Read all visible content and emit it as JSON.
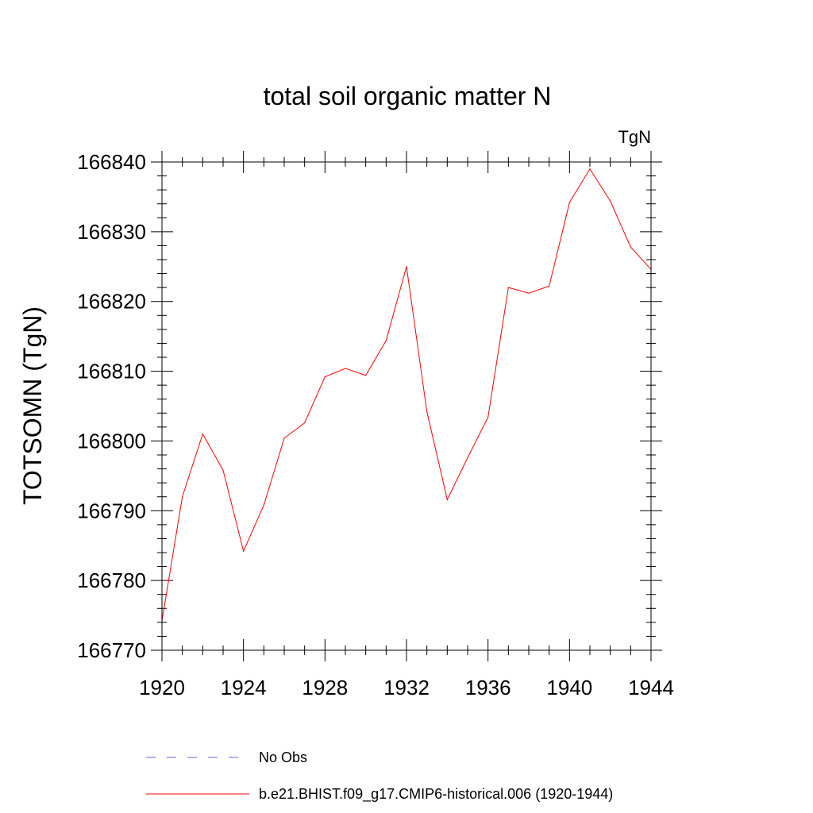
{
  "chart_data": {
    "type": "line",
    "title": "total soil organic matter N",
    "units_label": "TgN",
    "xlabel": "",
    "ylabel": "TOTSOMN  (TgN)",
    "xlim": [
      1920,
      1944
    ],
    "ylim": [
      166770,
      166840
    ],
    "x_ticks": [
      "1920",
      "1924",
      "1928",
      "1932",
      "1936",
      "1940",
      "1944"
    ],
    "y_ticks": [
      "166770",
      "166780",
      "166790",
      "166800",
      "166810",
      "166820",
      "166830",
      "166840"
    ],
    "series": [
      {
        "name": "b.e21.BHIST.f09_g17.CMIP6-historical.006 (1920-1944)",
        "color": "#ff0000",
        "style": "solid",
        "x": [
          1920,
          1921,
          1922,
          1923,
          1924,
          1925,
          1926,
          1927,
          1928,
          1929,
          1930,
          1931,
          1932,
          1933,
          1934,
          1935,
          1936,
          1937,
          1938,
          1939,
          1940,
          1941,
          1942,
          1943,
          1944
        ],
        "values": [
          166774.2,
          166792.0,
          166801.0,
          166795.8,
          166784.2,
          166790.8,
          166800.4,
          166802.6,
          166809.2,
          166810.4,
          166809.4,
          166814.4,
          166825.0,
          166804.2,
          166791.6,
          166797.6,
          166803.4,
          166822.0,
          166821.2,
          166822.2,
          166834.2,
          166839.0,
          166834.4,
          166827.8,
          166824.6
        ]
      }
    ],
    "legend": [
      {
        "label": "No Obs",
        "color": "#6b5bd6",
        "style": "dashed"
      },
      {
        "label": "b.e21.BHIST.f09_g17.CMIP6-historical.006 (1920-1944)",
        "color": "#ff0000",
        "style": "solid"
      }
    ],
    "grid": false,
    "legend_position": "bottom"
  }
}
